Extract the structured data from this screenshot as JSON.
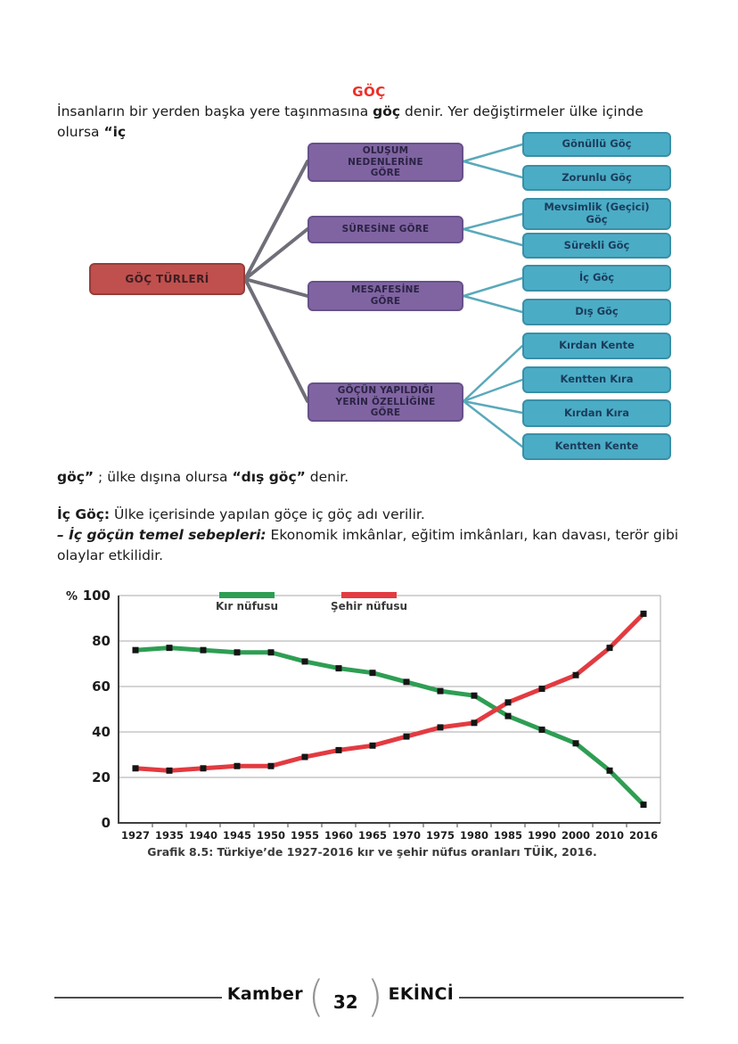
{
  "title": "GÖÇ",
  "intro": {
    "s1": "İnsanların bir yerden başka yere taşınmasına ",
    "s2": "göç",
    "s3": " denir. Yer değiştirmeler ülke içinde olursa ",
    "s4": "“iç"
  },
  "para2": {
    "s1": "göç”",
    "s2": " ; ülke dışına olursa ",
    "s3": "“dış göç”",
    "s4": " denir."
  },
  "ic_goc": {
    "s1": "İç Göç:",
    "s2": " Ülke içerisinde yapılan göçe iç göç adı verilir."
  },
  "sebepler": {
    "s1": "– İç göçün temel sebepleri:",
    "s2": " Ekonomik imkânlar, eğitim imkânları, kan davası, terör gibi olaylar etkilidir."
  },
  "diagram": {
    "root": {
      "label": "GÖÇ TÜRLERİ"
    },
    "groups": [
      {
        "label": "OLUŞUM NEDENLERİNE GÖRE"
      },
      {
        "label": "SÜRESİNE GÖRE"
      },
      {
        "label": "MESAFESİNE GÖRE"
      },
      {
        "label": "GÖÇÜN YAPILDIĞI YERİN ÖZELLİĞİNE GÖRE"
      }
    ],
    "leaves": [
      {
        "label": "Gönüllü Göç"
      },
      {
        "label": "Zorunlu Göç"
      },
      {
        "label": "Mevsimlik (Geçici) Göç"
      },
      {
        "label": "Sürekli Göç"
      },
      {
        "label": "İç Göç"
      },
      {
        "label": "Dış Göç"
      },
      {
        "label": "Kırdan Kente"
      },
      {
        "label": "Kentten Kıra"
      },
      {
        "label": "Kırdan Kıra"
      },
      {
        "label": "Kentten Kente"
      }
    ],
    "colors": {
      "root": "#c0504d",
      "group": "#8064a2",
      "leaf": "#4bacc6"
    }
  },
  "chart_data": {
    "type": "line",
    "caption": "Grafik 8.5: Türkiye’de 1927-2016 kır ve şehir nüfus oranları TÜİK, 2016.",
    "y_unit": "%",
    "ylim": [
      0,
      100
    ],
    "y_ticks": [
      0,
      20,
      40,
      60,
      80,
      100
    ],
    "categories": [
      "1927",
      "1935",
      "1940",
      "1945",
      "1950",
      "1955",
      "1960",
      "1965",
      "1970",
      "1975",
      "1980",
      "1985",
      "1990",
      "2000",
      "2010",
      "2016"
    ],
    "series": [
      {
        "name": "Kır nüfusu",
        "color": "#2e9e53",
        "values": [
          76,
          77,
          76,
          75,
          75,
          71,
          68,
          66,
          62,
          58,
          56,
          47,
          41,
          35,
          23,
          8
        ]
      },
      {
        "name": "Şehir nüfusu",
        "color": "#e23b41",
        "values": [
          24,
          23,
          24,
          25,
          25,
          29,
          32,
          34,
          38,
          42,
          44,
          53,
          59,
          65,
          77,
          92
        ]
      }
    ],
    "marker_color": "#151515",
    "grid": true,
    "legend_position": "top"
  },
  "footer": {
    "left_name": "Kamber",
    "page_number": "32",
    "right_name": "EKİNCİ"
  }
}
